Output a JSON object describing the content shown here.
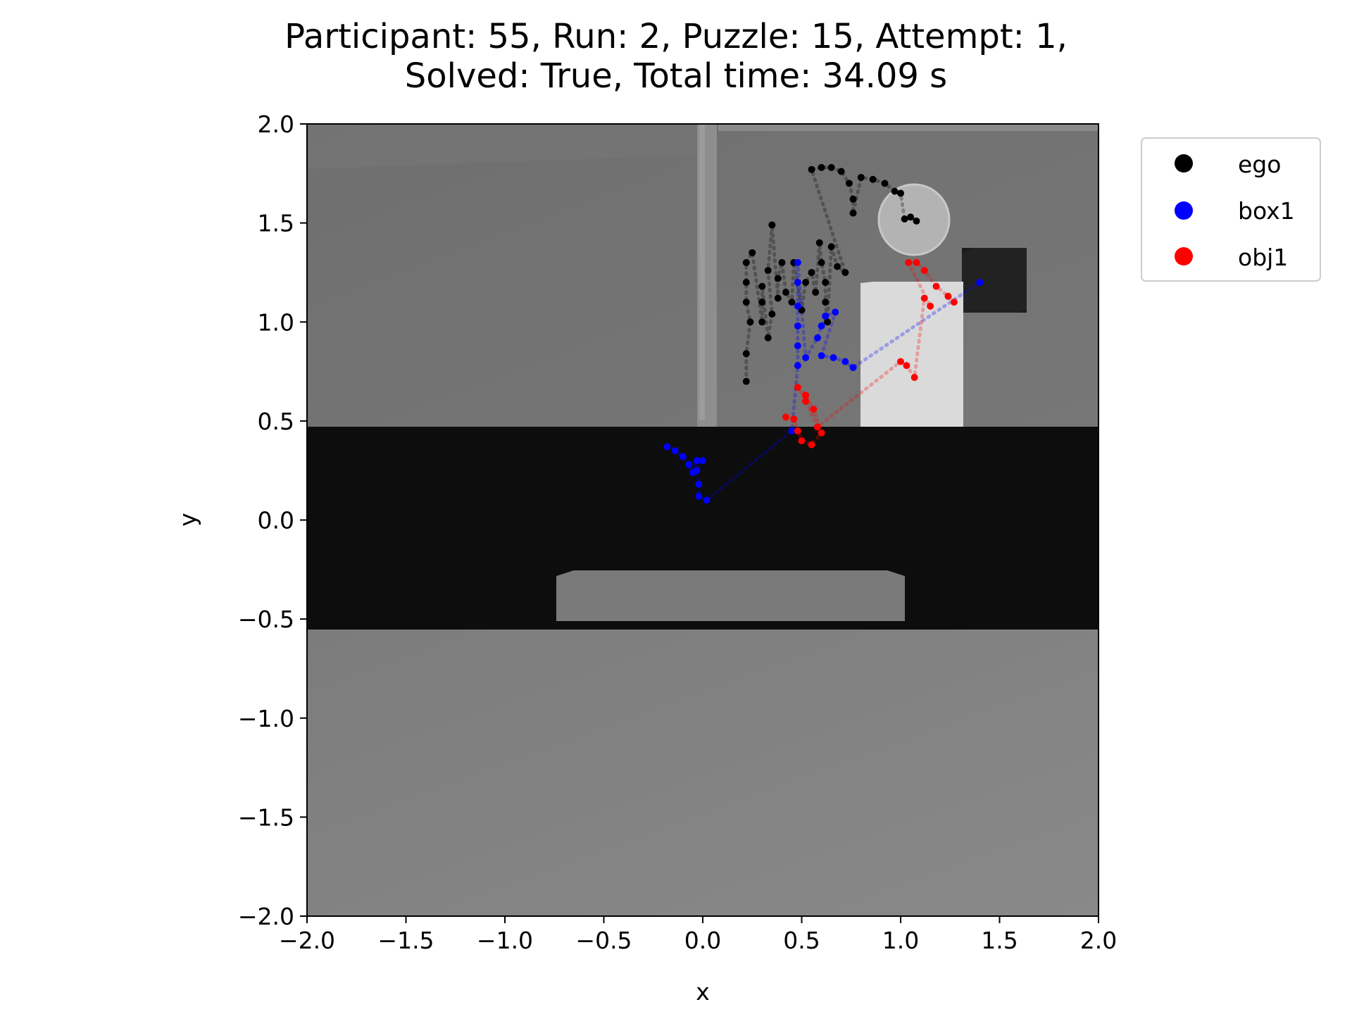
{
  "title": {
    "line1": "Participant: 55, Run: 2, Puzzle: 15, Attempt: 1,",
    "line2": "Solved: True, Total time: 34.09 s"
  },
  "chart_data": {
    "type": "scatter",
    "xlabel": "x",
    "ylabel": "y",
    "xlim": [
      -2.0,
      2.0
    ],
    "ylim": [
      -2.0,
      2.0
    ],
    "xticks": [
      "−2.0",
      "−1.5",
      "−1.0",
      "−0.5",
      "0.0",
      "0.5",
      "1.0",
      "1.5",
      "2.0"
    ],
    "yticks": [
      "−2.0",
      "−1.5",
      "−1.0",
      "−0.5",
      "0.0",
      "0.5",
      "1.0",
      "1.5",
      "2.0"
    ],
    "grid": false,
    "legend_position": "outside top-right",
    "background_image": "grayscale top-down scene render",
    "series": [
      {
        "name": "ego",
        "color": "#000000",
        "points": [
          [
            0.22,
            0.7
          ],
          [
            0.22,
            0.84
          ],
          [
            0.24,
            1.0
          ],
          [
            0.22,
            1.1
          ],
          [
            0.22,
            1.2
          ],
          [
            0.22,
            1.3
          ],
          [
            0.25,
            1.35
          ],
          [
            0.3,
            1.0
          ],
          [
            0.3,
            1.1
          ],
          [
            0.3,
            1.18
          ],
          [
            0.33,
            0.92
          ],
          [
            0.35,
            1.04
          ],
          [
            0.33,
            1.26
          ],
          [
            0.35,
            1.49
          ],
          [
            0.38,
            1.12
          ],
          [
            0.38,
            1.22
          ],
          [
            0.4,
            1.3
          ],
          [
            0.42,
            1.15
          ],
          [
            0.45,
            1.1
          ],
          [
            0.46,
            1.3
          ],
          [
            0.5,
            1.06
          ],
          [
            0.52,
            1.2
          ],
          [
            0.55,
            1.25
          ],
          [
            0.57,
            1.15
          ],
          [
            0.59,
            1.4
          ],
          [
            0.6,
            1.3
          ],
          [
            0.62,
            1.2
          ],
          [
            0.62,
            1.1
          ],
          [
            0.63,
            1.0
          ],
          [
            0.65,
            1.38
          ],
          [
            0.68,
            1.28
          ],
          [
            0.72,
            1.25
          ],
          [
            0.55,
            1.77
          ],
          [
            0.6,
            1.78
          ],
          [
            0.65,
            1.78
          ],
          [
            0.7,
            1.76
          ],
          [
            0.74,
            1.7
          ],
          [
            0.76,
            1.62
          ],
          [
            0.76,
            1.55
          ],
          [
            0.8,
            1.73
          ],
          [
            0.86,
            1.72
          ],
          [
            0.92,
            1.7
          ],
          [
            0.97,
            1.66
          ],
          [
            1.0,
            1.65
          ],
          [
            1.02,
            1.52
          ],
          [
            1.05,
            1.53
          ],
          [
            1.08,
            1.51
          ]
        ]
      },
      {
        "name": "box1",
        "color": "#0000ff",
        "points": [
          [
            -0.18,
            0.37
          ],
          [
            -0.14,
            0.35
          ],
          [
            -0.1,
            0.32
          ],
          [
            -0.07,
            0.28
          ],
          [
            -0.05,
            0.24
          ],
          [
            -0.03,
            0.3
          ],
          [
            0.0,
            0.3
          ],
          [
            -0.03,
            0.25
          ],
          [
            -0.02,
            0.18
          ],
          [
            -0.02,
            0.12
          ],
          [
            0.02,
            0.1
          ],
          [
            0.45,
            0.45
          ],
          [
            0.48,
            0.78
          ],
          [
            0.48,
            0.88
          ],
          [
            0.48,
            0.98
          ],
          [
            0.48,
            1.08
          ],
          [
            0.48,
            1.2
          ],
          [
            0.48,
            1.3
          ],
          [
            0.52,
            0.82
          ],
          [
            0.58,
            0.92
          ],
          [
            0.6,
            0.98
          ],
          [
            0.62,
            1.03
          ],
          [
            0.67,
            1.05
          ],
          [
            0.6,
            0.83
          ],
          [
            0.66,
            0.82
          ],
          [
            0.72,
            0.8
          ],
          [
            0.76,
            0.77
          ],
          [
            1.4,
            1.2
          ]
        ]
      },
      {
        "name": "obj1",
        "color": "#ff0000",
        "points": [
          [
            0.42,
            0.52
          ],
          [
            0.46,
            0.51
          ],
          [
            0.48,
            0.45
          ],
          [
            0.5,
            0.4
          ],
          [
            0.55,
            0.38
          ],
          [
            0.6,
            0.44
          ],
          [
            0.56,
            0.56
          ],
          [
            0.52,
            0.63
          ],
          [
            0.48,
            0.67
          ],
          [
            0.52,
            0.6
          ],
          [
            0.58,
            0.47
          ],
          [
            1.0,
            0.8
          ],
          [
            1.03,
            0.78
          ],
          [
            1.07,
            0.72
          ],
          [
            1.12,
            1.12
          ],
          [
            1.15,
            1.08
          ],
          [
            1.04,
            1.3
          ],
          [
            1.08,
            1.3
          ],
          [
            1.12,
            1.26
          ],
          [
            1.18,
            1.18
          ],
          [
            1.24,
            1.13
          ],
          [
            1.27,
            1.1
          ]
        ]
      }
    ]
  }
}
